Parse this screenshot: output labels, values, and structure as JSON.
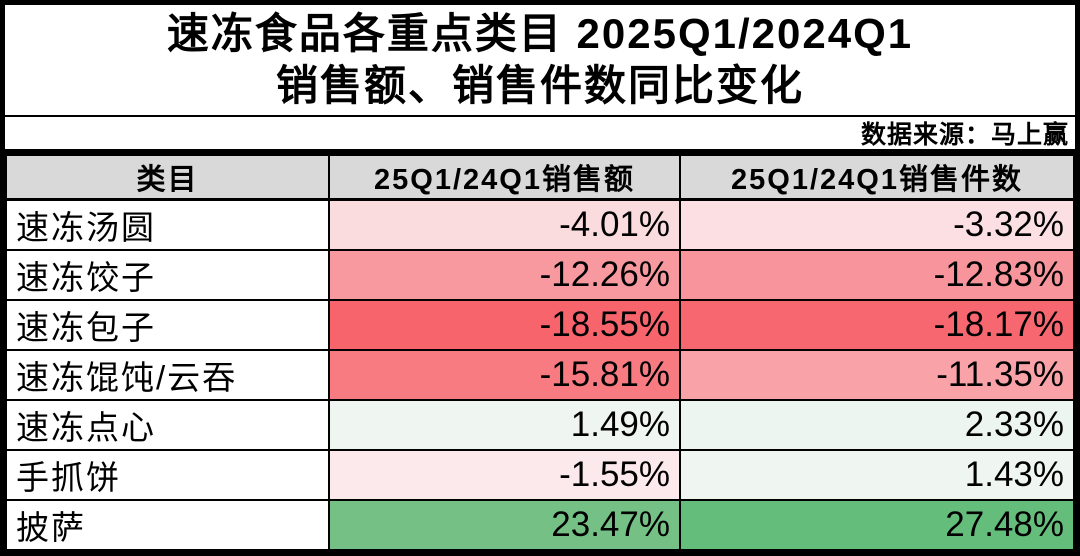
{
  "title": {
    "line1": "速冻食品各重点类目 2025Q1/2024Q1",
    "line2": "销售额、销售件数同比变化"
  },
  "source": "数据来源：马上赢",
  "colors": {
    "header_bg": "#d9d9d9",
    "border": "#000000",
    "scale_negative": "#F8696B",
    "scale_neutral": "#FCFCFF",
    "scale_positive": "#63BE7B"
  },
  "table": {
    "headers": [
      "类目",
      "25Q1/24Q1销售额",
      "25Q1/24Q1销售件数"
    ],
    "rows": [
      {
        "category": "速冻汤圆",
        "sales": "-4.01%",
        "sales_bg": "#FADCDE",
        "units": "-3.32%",
        "units_bg": "#FBDFE2"
      },
      {
        "category": "速冻饺子",
        "sales": "-12.26%",
        "sales_bg": "#F8989F",
        "units": "-12.83%",
        "units_bg": "#F8959C"
      },
      {
        "category": "速冻包子",
        "sales": "-18.55%",
        "sales_bg": "#F7646C",
        "units": "-18.17%",
        "units_bg": "#F7676F"
      },
      {
        "category": "速冻馄饨/云吞",
        "sales": "-15.81%",
        "sales_bg": "#F87B81",
        "units": "-11.35%",
        "units_bg": "#F9A3A9"
      },
      {
        "category": "速冻点心",
        "sales": "1.49%",
        "sales_bg": "#EFF6F1",
        "units": "2.33%",
        "units_bg": "#ECF5EF"
      },
      {
        "category": "手抓饼",
        "sales": "-1.55%",
        "sales_bg": "#FCE9EC",
        "units": "1.43%",
        "units_bg": "#EFF6F2"
      },
      {
        "category": "披萨",
        "sales": "23.47%",
        "sales_bg": "#75C185",
        "units": "27.48%",
        "units_bg": "#65BD7B"
      }
    ]
  },
  "chart_data": {
    "type": "table",
    "title": "速冻食品各重点类目 2025Q1/2024Q1 销售额、销售件数同比变化",
    "source": "数据来源：马上赢",
    "columns": [
      "类目",
      "25Q1/24Q1销售额",
      "25Q1/24Q1销售件数"
    ],
    "categories": [
      "速冻汤圆",
      "速冻饺子",
      "速冻包子",
      "速冻馄饨/云吞",
      "速冻点心",
      "手抓饼",
      "披萨"
    ],
    "series": [
      {
        "name": "25Q1/24Q1销售额",
        "unit": "%",
        "values": [
          -4.01,
          -12.26,
          -18.55,
          -15.81,
          1.49,
          -1.55,
          23.47
        ]
      },
      {
        "name": "25Q1/24Q1销售件数",
        "unit": "%",
        "values": [
          -3.32,
          -12.83,
          -18.17,
          -11.35,
          2.33,
          1.43,
          27.48
        ]
      }
    ],
    "layout_hints": {
      "conditional_format": "3-color scale red(#F8696B) -> white(#FCFCFF) -> green(#63BE7B) by value",
      "value_alignment": "right",
      "header_bg": "#d9d9d9"
    }
  }
}
